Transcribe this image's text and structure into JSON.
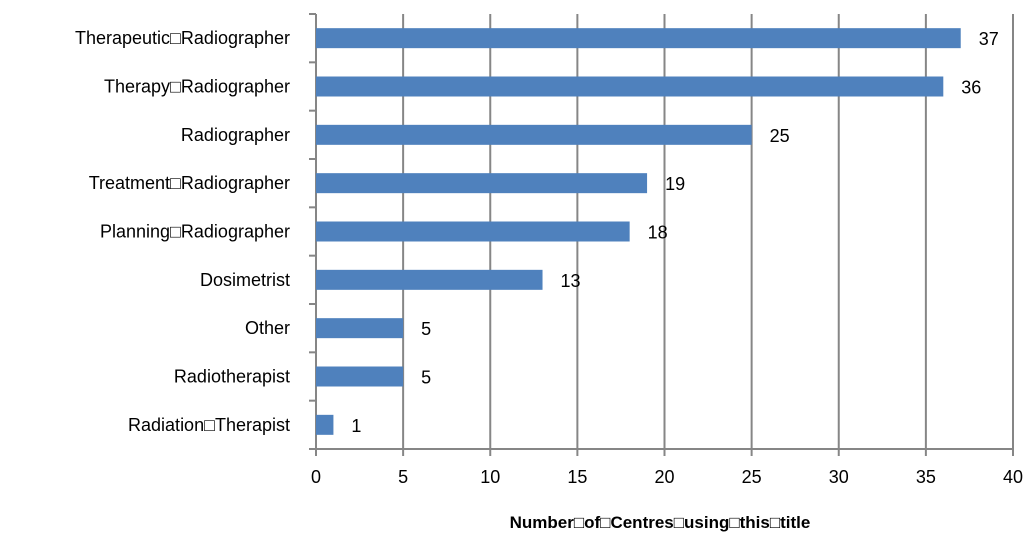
{
  "chart_data": {
    "type": "bar",
    "orientation": "horizontal",
    "categories": [
      "Therapeutic□Radiographer",
      "Therapy□Radiographer",
      "Radiographer",
      "Treatment□Radiographer",
      "Planning□Radiographer",
      "Dosimetrist",
      "Other",
      "Radiotherapist",
      "Radiation□Therapist"
    ],
    "values": [
      37,
      36,
      25,
      19,
      18,
      13,
      5,
      5,
      1
    ],
    "data_labels": [
      "37",
      "36",
      "25",
      "19",
      "18",
      "13",
      "5",
      "5",
      "1"
    ],
    "xlabel": "Number□of□Centres□using□this□title",
    "ylabel": "",
    "title": "",
    "xlim": [
      0,
      40
    ],
    "x_ticks": [
      0,
      5,
      10,
      15,
      20,
      25,
      30,
      35,
      40
    ],
    "grid": "vertical",
    "legend": "none",
    "colors": {
      "bar": "#4f81bd",
      "grid": "#868686",
      "axis": "#868686"
    }
  }
}
